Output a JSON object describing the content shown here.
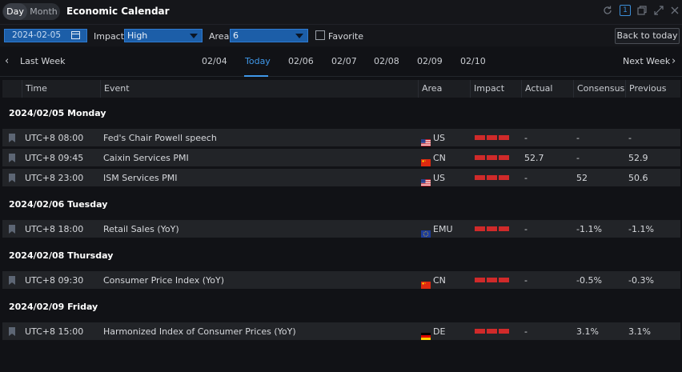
{
  "topbar": {
    "view_options": [
      "Day",
      "Month"
    ],
    "selected_view": "Day",
    "title": "Economic Calendar",
    "badge_text": "1"
  },
  "filters": {
    "date_value": "2024-02-05",
    "impact_label": "Impact",
    "impact_value": "High",
    "area_label": "Area",
    "area_value": "6",
    "favorite_label": "Favorite",
    "favorite_checked": false,
    "back_to_today_label": "Back to today"
  },
  "date_nav": {
    "prev_label": "Last Week",
    "next_label": "Next Week",
    "days": [
      "02/04",
      "Today",
      "02/06",
      "02/07",
      "02/08",
      "02/09",
      "02/10"
    ],
    "active_day": "Today"
  },
  "table": {
    "headers": [
      "Time",
      "Event",
      "Area",
      "Impact",
      "Actual",
      "Consensus",
      "Previous"
    ],
    "groups": [
      {
        "title": "2024/02/05 Monday",
        "rows": [
          {
            "time": "UTC+8 08:00",
            "event": "Fed's Chair Powell speech",
            "area": "US",
            "impact_level": 3,
            "actual": "-",
            "consensus": "-",
            "previous": "-"
          },
          {
            "time": "UTC+8 09:45",
            "event": "Caixin Services PMI",
            "area": "CN",
            "impact_level": 3,
            "actual": "52.7",
            "consensus": "-",
            "previous": "52.9"
          },
          {
            "time": "UTC+8 23:00",
            "event": "ISM Services PMI",
            "area": "US",
            "impact_level": 3,
            "actual": "-",
            "consensus": "52",
            "previous": "50.6"
          }
        ]
      },
      {
        "title": "2024/02/06 Tuesday",
        "rows": [
          {
            "time": "UTC+8 18:00",
            "event": "Retail Sales (YoY)",
            "area": "EMU",
            "impact_level": 3,
            "actual": "-",
            "consensus": "-1.1%",
            "previous": "-1.1%"
          }
        ]
      },
      {
        "title": "2024/02/08 Thursday",
        "rows": [
          {
            "time": "UTC+8 09:30",
            "event": "Consumer Price Index (YoY)",
            "area": "CN",
            "impact_level": 3,
            "actual": "-",
            "consensus": "-0.5%",
            "previous": "-0.3%"
          }
        ]
      },
      {
        "title": "2024/02/09 Friday",
        "rows": [
          {
            "time": "UTC+8 15:00",
            "event": "Harmonized Index of Consumer Prices (YoY)",
            "area": "DE",
            "impact_level": 3,
            "actual": "-",
            "consensus": "3.1%",
            "previous": "3.1%"
          }
        ]
      }
    ]
  },
  "colors": {
    "accent": "#3f97e8",
    "impact_high": "#d02a2a",
    "background": "#111216",
    "row_background": "#222428"
  }
}
